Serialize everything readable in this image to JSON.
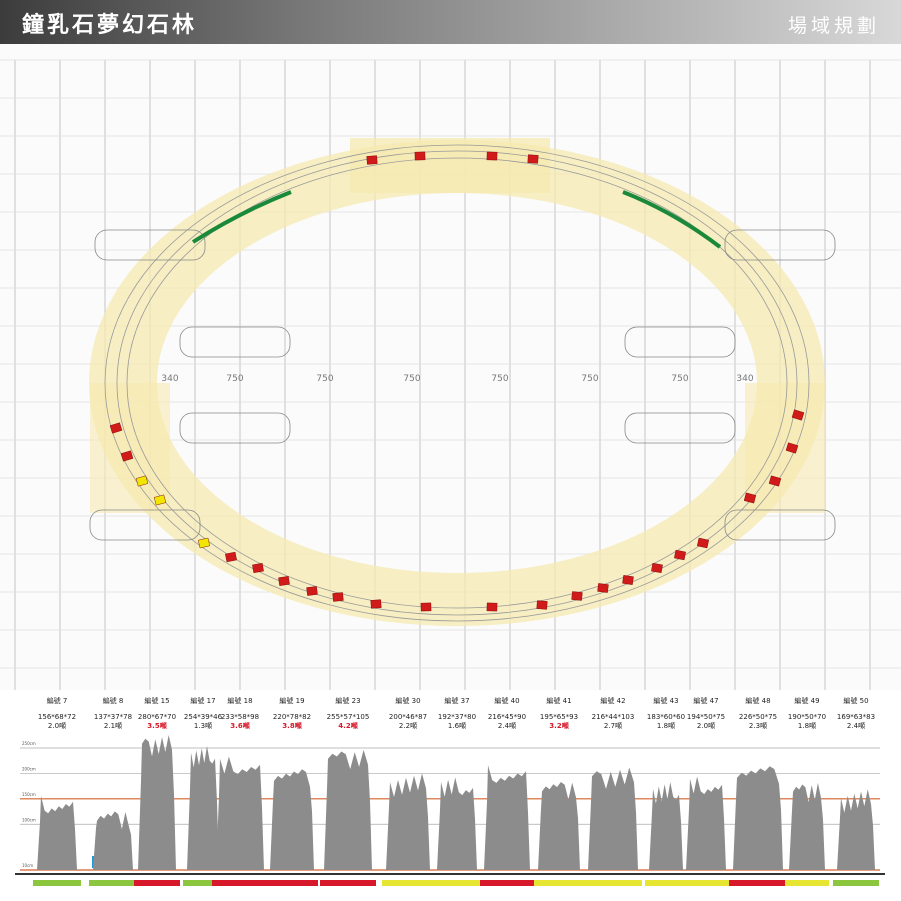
{
  "header": {
    "title": "鐘乳石夢幻石林",
    "section": "場域規劃"
  },
  "plan": {
    "dims": [
      "340",
      "750",
      "750",
      "750",
      "750",
      "750",
      "750",
      "340"
    ]
  },
  "scale": {
    "ticks": [
      {
        "value": 250,
        "label": "250cm"
      },
      {
        "value": 200,
        "label": "200cm"
      },
      {
        "value": 150,
        "label": "150cm"
      },
      {
        "value": 100,
        "label": "100cm"
      },
      {
        "value": 10,
        "label": "10cm"
      }
    ]
  },
  "stones": [
    {
      "id": "編號 7",
      "size": "156*68*72",
      "weight": "2.0噸",
      "heavy": false,
      "color": "#8cc63f"
    },
    {
      "id": "編號 8",
      "size": "137*37*78",
      "weight": "2.1噸",
      "heavy": false,
      "color": "#8cc63f"
    },
    {
      "id": "編號 15",
      "size": "280*67*70",
      "weight": "3.5噸",
      "heavy": true,
      "color": "#d7182a"
    },
    {
      "id": "編號 17",
      "size": "254*39*46",
      "weight": "1.3噸",
      "heavy": false,
      "color": "#8cc63f"
    },
    {
      "id": "編號 18",
      "size": "233*58*98",
      "weight": "3.6噸",
      "heavy": true,
      "color": "#d7182a"
    },
    {
      "id": "編號 19",
      "size": "220*78*82",
      "weight": "3.8噸",
      "heavy": true,
      "color": "#d7182a"
    },
    {
      "id": "編號 23",
      "size": "255*57*105",
      "weight": "4.2噸",
      "heavy": true,
      "color": "#d7182a"
    },
    {
      "id": "編號 30",
      "size": "200*46*87",
      "weight": "2.2噸",
      "heavy": false,
      "color": "#e6e632"
    },
    {
      "id": "編號 37",
      "size": "192*37*80",
      "weight": "1.6噸",
      "heavy": false,
      "color": "#e6e632"
    },
    {
      "id": "編號 40",
      "size": "216*45*90",
      "weight": "2.4噸",
      "heavy": false,
      "color": "#d7182a"
    },
    {
      "id": "編號 41",
      "size": "195*65*93",
      "weight": "3.2噸",
      "heavy": true,
      "color": "#e6e632"
    },
    {
      "id": "編號 42",
      "size": "216*44*103",
      "weight": "2.7噸",
      "heavy": false,
      "color": "#e6e632"
    },
    {
      "id": "編號 43",
      "size": "183*60*60",
      "weight": "1.8噸",
      "heavy": false,
      "color": "#e6e632"
    },
    {
      "id": "編號 47",
      "size": "194*50*75",
      "weight": "2.0噸",
      "heavy": false,
      "color": "#e6e632"
    },
    {
      "id": "編號 48",
      "size": "226*50*75",
      "weight": "2.3噸",
      "heavy": false,
      "color": "#d7182a"
    },
    {
      "id": "編號 49",
      "size": "190*50*70",
      "weight": "1.8噸",
      "heavy": false,
      "color": "#e6e632"
    },
    {
      "id": "編號 50",
      "size": "169*63*83",
      "weight": "2.4噸",
      "heavy": false,
      "color": "#8cc63f"
    }
  ]
}
